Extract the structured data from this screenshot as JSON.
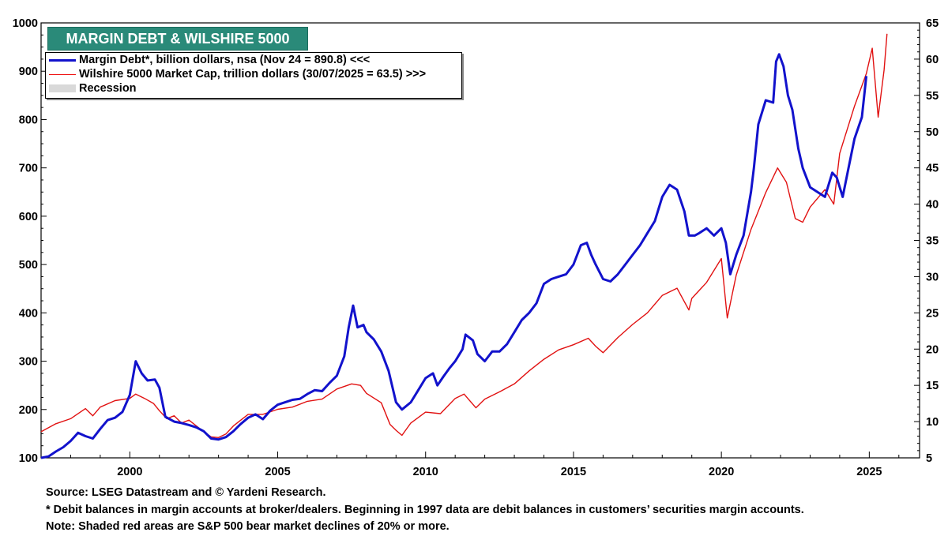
{
  "title": "MARGIN DEBT & WILSHIRE 5000",
  "legend": {
    "margin_debt": "Margin Debt*, billion dollars, nsa (Nov 24 = 890.8) <<<",
    "wilshire": "Wilshire 5000 Market Cap, trillion dollars  (30/07/2025 = 63.5) >>>",
    "recession": "Recession"
  },
  "notes": {
    "source": "Source: LSEG Datastream and © Yardeni Research.",
    "footnote": "* Debit balances in margin accounts at broker/dealers. Beginning in 1997 data are debit balances in customers’ securities margin accounts.",
    "note": "Note: Shaded red areas are S&P 500 bear market declines of 20% or more."
  },
  "colors": {
    "margin_debt": "#1212cc",
    "wilshire": "#e11111",
    "recession": "#d9d9d9",
    "title_bg": "#2a8a79"
  },
  "chart_data": {
    "type": "line",
    "xlim": [
      1997.0,
      2026.7
    ],
    "x_ticks": [
      "2000",
      "2005",
      "2010",
      "2015",
      "2020",
      "2025"
    ],
    "left_axis": {
      "ylim": [
        100,
        1000
      ],
      "ticks": [
        "100",
        "200",
        "300",
        "400",
        "500",
        "600",
        "700",
        "800",
        "900",
        "1000"
      ]
    },
    "right_axis": {
      "ylim": [
        5,
        65
      ],
      "ticks": [
        "5",
        "10",
        "15",
        "20",
        "25",
        "30",
        "35",
        "40",
        "45",
        "50",
        "55",
        "60",
        "65"
      ]
    },
    "grid": false,
    "series": [
      {
        "name": "Margin Debt*, billion dollars, nsa",
        "axis": "left",
        "points": [
          [
            1997.0,
            100
          ],
          [
            1997.25,
            103
          ],
          [
            1997.5,
            113
          ],
          [
            1997.75,
            122
          ],
          [
            1998.0,
            135
          ],
          [
            1998.25,
            152
          ],
          [
            1998.5,
            145
          ],
          [
            1998.75,
            140
          ],
          [
            1999.0,
            160
          ],
          [
            1999.25,
            178
          ],
          [
            1999.5,
            183
          ],
          [
            1999.75,
            195
          ],
          [
            2000.0,
            230
          ],
          [
            2000.2,
            300
          ],
          [
            2000.4,
            275
          ],
          [
            2000.6,
            260
          ],
          [
            2000.85,
            262
          ],
          [
            2001.0,
            245
          ],
          [
            2001.2,
            185
          ],
          [
            2001.5,
            175
          ],
          [
            2001.75,
            172
          ],
          [
            2002.0,
            168
          ],
          [
            2002.25,
            163
          ],
          [
            2002.5,
            155
          ],
          [
            2002.75,
            140
          ],
          [
            2003.0,
            138
          ],
          [
            2003.25,
            143
          ],
          [
            2003.5,
            155
          ],
          [
            2003.75,
            170
          ],
          [
            2004.0,
            183
          ],
          [
            2004.25,
            190
          ],
          [
            2004.5,
            180
          ],
          [
            2004.75,
            198
          ],
          [
            2005.0,
            210
          ],
          [
            2005.25,
            215
          ],
          [
            2005.5,
            220
          ],
          [
            2005.75,
            222
          ],
          [
            2006.0,
            232
          ],
          [
            2006.25,
            240
          ],
          [
            2006.5,
            238
          ],
          [
            2006.75,
            255
          ],
          [
            2007.0,
            270
          ],
          [
            2007.25,
            310
          ],
          [
            2007.4,
            370
          ],
          [
            2007.55,
            415
          ],
          [
            2007.7,
            370
          ],
          [
            2007.9,
            375
          ],
          [
            2008.0,
            360
          ],
          [
            2008.25,
            345
          ],
          [
            2008.5,
            320
          ],
          [
            2008.75,
            280
          ],
          [
            2009.0,
            215
          ],
          [
            2009.2,
            200
          ],
          [
            2009.5,
            215
          ],
          [
            2009.75,
            240
          ],
          [
            2010.0,
            265
          ],
          [
            2010.25,
            275
          ],
          [
            2010.4,
            250
          ],
          [
            2010.6,
            268
          ],
          [
            2010.8,
            285
          ],
          [
            2011.0,
            300
          ],
          [
            2011.25,
            325
          ],
          [
            2011.35,
            355
          ],
          [
            2011.6,
            343
          ],
          [
            2011.75,
            315
          ],
          [
            2012.0,
            300
          ],
          [
            2012.25,
            320
          ],
          [
            2012.5,
            320
          ],
          [
            2012.75,
            335
          ],
          [
            2013.0,
            360
          ],
          [
            2013.25,
            385
          ],
          [
            2013.5,
            400
          ],
          [
            2013.75,
            420
          ],
          [
            2014.0,
            460
          ],
          [
            2014.25,
            470
          ],
          [
            2014.5,
            475
          ],
          [
            2014.75,
            480
          ],
          [
            2015.0,
            500
          ],
          [
            2015.25,
            540
          ],
          [
            2015.45,
            545
          ],
          [
            2015.6,
            520
          ],
          [
            2015.75,
            500
          ],
          [
            2016.0,
            470
          ],
          [
            2016.25,
            465
          ],
          [
            2016.5,
            480
          ],
          [
            2016.75,
            500
          ],
          [
            2017.0,
            520
          ],
          [
            2017.25,
            540
          ],
          [
            2017.5,
            565
          ],
          [
            2017.75,
            590
          ],
          [
            2018.0,
            640
          ],
          [
            2018.25,
            665
          ],
          [
            2018.5,
            655
          ],
          [
            2018.75,
            610
          ],
          [
            2018.9,
            560
          ],
          [
            2019.1,
            560
          ],
          [
            2019.25,
            565
          ],
          [
            2019.5,
            575
          ],
          [
            2019.75,
            560
          ],
          [
            2020.0,
            575
          ],
          [
            2020.15,
            545
          ],
          [
            2020.3,
            480
          ],
          [
            2020.5,
            520
          ],
          [
            2020.75,
            560
          ],
          [
            2021.0,
            650
          ],
          [
            2021.1,
            700
          ],
          [
            2021.25,
            790
          ],
          [
            2021.5,
            840
          ],
          [
            2021.75,
            835
          ],
          [
            2021.85,
            920
          ],
          [
            2021.95,
            935
          ],
          [
            2022.1,
            910
          ],
          [
            2022.25,
            850
          ],
          [
            2022.4,
            820
          ],
          [
            2022.6,
            740
          ],
          [
            2022.75,
            700
          ],
          [
            2023.0,
            660
          ],
          [
            2023.25,
            650
          ],
          [
            2023.5,
            640
          ],
          [
            2023.75,
            690
          ],
          [
            2023.9,
            680
          ],
          [
            2024.1,
            640
          ],
          [
            2024.3,
            700
          ],
          [
            2024.5,
            760
          ],
          [
            2024.75,
            805
          ],
          [
            2024.9,
            890
          ]
        ]
      },
      {
        "name": "Wilshire 5000 Market Cap, trillion dollars",
        "axis": "right",
        "points": [
          [
            1997.0,
            8.6
          ],
          [
            1997.5,
            9.7
          ],
          [
            1998.0,
            10.4
          ],
          [
            1998.5,
            11.8
          ],
          [
            1998.75,
            10.8
          ],
          [
            1999.0,
            12.0
          ],
          [
            1999.5,
            12.9
          ],
          [
            2000.0,
            13.2
          ],
          [
            2000.2,
            13.8
          ],
          [
            2000.5,
            13.2
          ],
          [
            2000.8,
            12.5
          ],
          [
            2001.0,
            11.5
          ],
          [
            2001.25,
            10.4
          ],
          [
            2001.5,
            10.8
          ],
          [
            2001.75,
            9.8
          ],
          [
            2002.0,
            10.2
          ],
          [
            2002.5,
            8.6
          ],
          [
            2002.75,
            7.9
          ],
          [
            2003.0,
            7.8
          ],
          [
            2003.25,
            8.3
          ],
          [
            2003.5,
            9.4
          ],
          [
            2004.0,
            11.0
          ],
          [
            2004.5,
            11.0
          ],
          [
            2005.0,
            11.7
          ],
          [
            2005.5,
            12.0
          ],
          [
            2006.0,
            12.8
          ],
          [
            2006.5,
            13.1
          ],
          [
            2007.0,
            14.5
          ],
          [
            2007.5,
            15.2
          ],
          [
            2007.8,
            15.0
          ],
          [
            2008.0,
            13.9
          ],
          [
            2008.5,
            12.6
          ],
          [
            2008.8,
            9.6
          ],
          [
            2009.0,
            8.8
          ],
          [
            2009.2,
            8.1
          ],
          [
            2009.5,
            9.8
          ],
          [
            2010.0,
            11.3
          ],
          [
            2010.5,
            11.1
          ],
          [
            2011.0,
            13.2
          ],
          [
            2011.3,
            13.8
          ],
          [
            2011.7,
            11.9
          ],
          [
            2012.0,
            13.1
          ],
          [
            2012.5,
            14.1
          ],
          [
            2013.0,
            15.2
          ],
          [
            2013.5,
            17.0
          ],
          [
            2014.0,
            18.6
          ],
          [
            2014.5,
            19.9
          ],
          [
            2015.0,
            20.6
          ],
          [
            2015.5,
            21.5
          ],
          [
            2015.75,
            20.4
          ],
          [
            2016.0,
            19.5
          ],
          [
            2016.5,
            21.6
          ],
          [
            2017.0,
            23.4
          ],
          [
            2017.5,
            25.0
          ],
          [
            2018.0,
            27.4
          ],
          [
            2018.5,
            28.4
          ],
          [
            2018.9,
            25.4
          ],
          [
            2019.0,
            27.0
          ],
          [
            2019.5,
            29.2
          ],
          [
            2020.0,
            32.5
          ],
          [
            2020.2,
            24.3
          ],
          [
            2020.5,
            30.2
          ],
          [
            2021.0,
            36.5
          ],
          [
            2021.5,
            41.6
          ],
          [
            2021.9,
            45.0
          ],
          [
            2022.2,
            43.0
          ],
          [
            2022.5,
            38.0
          ],
          [
            2022.75,
            37.5
          ],
          [
            2023.0,
            39.6
          ],
          [
            2023.5,
            42.0
          ],
          [
            2023.8,
            40.0
          ],
          [
            2024.0,
            47.0
          ],
          [
            2024.5,
            53.5
          ],
          [
            2024.9,
            58.0
          ],
          [
            2025.1,
            61.5
          ],
          [
            2025.3,
            52.0
          ],
          [
            2025.5,
            58.5
          ],
          [
            2025.6,
            63.5
          ]
        ]
      }
    ]
  }
}
